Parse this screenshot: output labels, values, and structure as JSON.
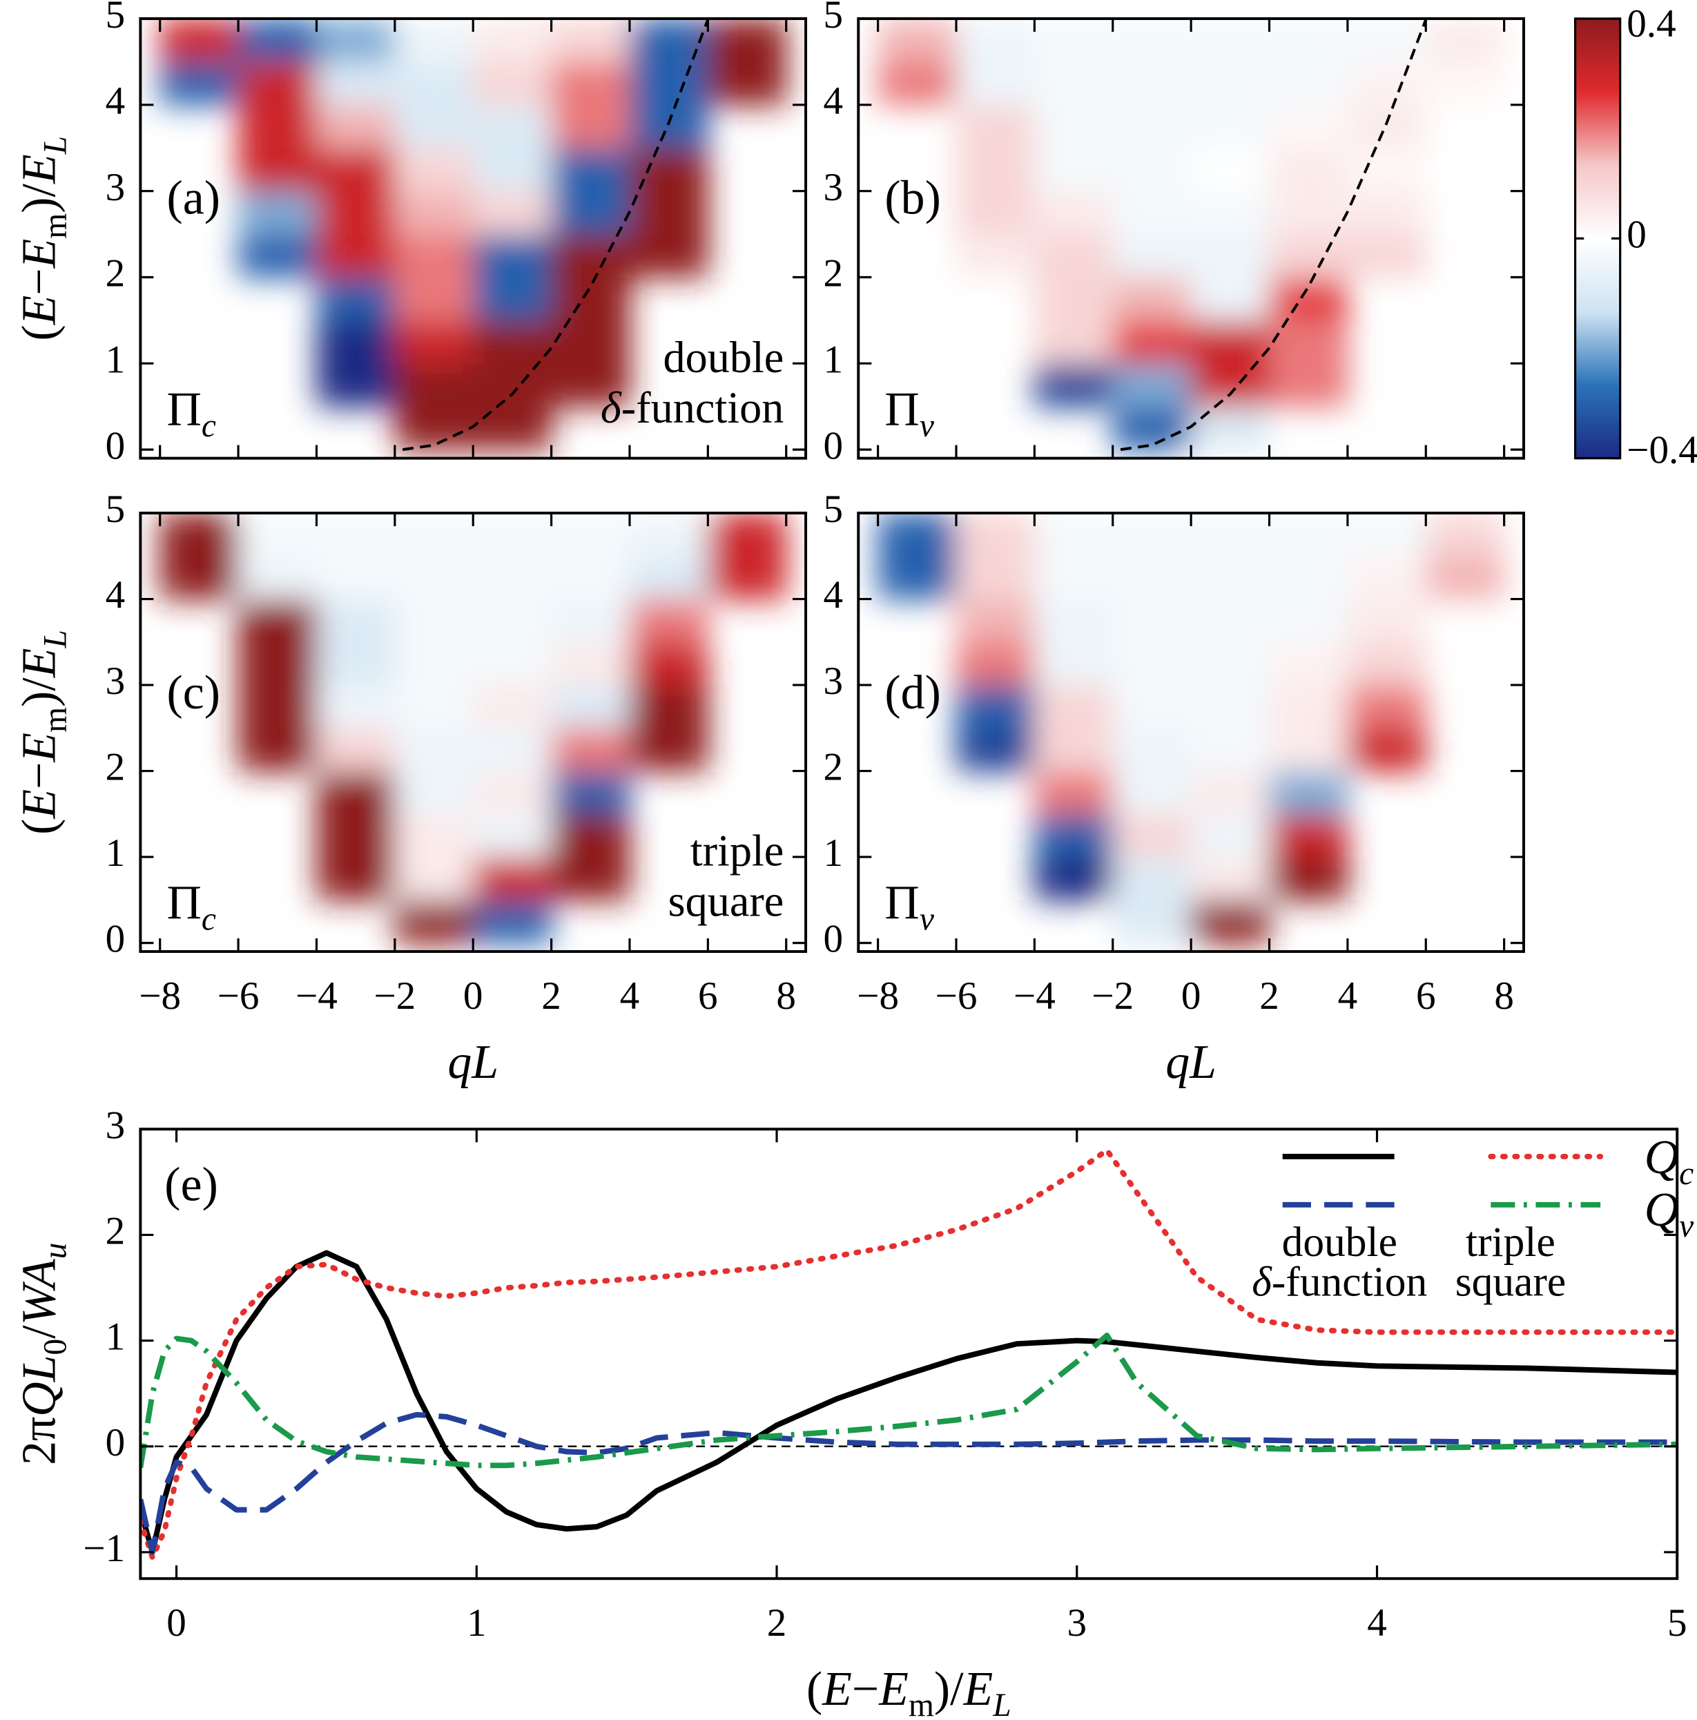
{
  "chart_data": [
    {
      "type": "heatmap",
      "panel_label": "(a)",
      "symbol": [
        [
          "Π",
          "n"
        ],
        [
          "c",
          "isub"
        ]
      ],
      "annotation": [
        [
          [
            "double",
            "n"
          ]
        ],
        [
          [
            "δ",
            "i"
          ],
          [
            "-function",
            "n"
          ]
        ]
      ],
      "ylabel": [
        [
          "(",
          "n"
        ],
        [
          "E",
          "i"
        ],
        [
          "−",
          "n"
        ],
        [
          "E",
          "i"
        ],
        [
          "m",
          "sub"
        ],
        [
          ")/",
          "n"
        ],
        [
          "E",
          "i"
        ],
        [
          "L",
          "isub"
        ]
      ],
      "x_edges": [
        -8,
        -6,
        -4,
        -2,
        0,
        2,
        4,
        6,
        8
      ],
      "y_edges": [
        0,
        0.5,
        1,
        1.5,
        2,
        2.5,
        3,
        3.5,
        4,
        4.5,
        5
      ],
      "z": [
        [
          null,
          null,
          null,
          0.4,
          0.4,
          null,
          null,
          null
        ],
        [
          null,
          null,
          -0.4,
          0.4,
          0.4,
          0.4,
          null,
          null
        ],
        [
          null,
          null,
          -0.4,
          0.3,
          0.4,
          0.4,
          null,
          null
        ],
        [
          null,
          null,
          -0.3,
          0.2,
          -0.3,
          0.4,
          null,
          null
        ],
        [
          null,
          -0.3,
          0.3,
          0.2,
          -0.3,
          0.4,
          0.4,
          null
        ],
        [
          null,
          -0.2,
          0.3,
          0.15,
          0.1,
          -0.3,
          0.4,
          null
        ],
        [
          null,
          0.3,
          0.3,
          0.1,
          -0.1,
          -0.3,
          0.4,
          null
        ],
        [
          null,
          0.3,
          0.15,
          -0.1,
          -0.1,
          0.2,
          -0.3,
          null
        ],
        [
          -0.3,
          0.3,
          -0.1,
          -0.1,
          0.1,
          0.2,
          -0.3,
          0.4
        ],
        [
          0.3,
          -0.3,
          -0.2,
          -0.05,
          0.05,
          0.1,
          -0.3,
          0.4
        ]
      ],
      "curve": {
        "x": [
          -1.8,
          -1,
          0,
          1,
          2,
          3,
          4,
          5,
          6
        ],
        "y": [
          0,
          0.052,
          0.266,
          0.643,
          1.18,
          1.89,
          2.76,
          3.79,
          4.99
        ]
      },
      "xlim": [
        -8.5,
        8.5
      ],
      "ylim": [
        -0.1,
        5
      ],
      "xticks": [
        -8,
        -6,
        -4,
        -2,
        0,
        2,
        4,
        6,
        8
      ],
      "show_xtick_labels": false,
      "yticks": [
        0,
        1,
        2,
        3,
        4,
        5
      ]
    },
    {
      "type": "heatmap",
      "panel_label": "(b)",
      "symbol": [
        [
          "Π",
          "n"
        ],
        [
          "v",
          "isub"
        ]
      ],
      "x_edges": [
        -8,
        -6,
        -4,
        -2,
        0,
        2,
        4,
        6,
        8
      ],
      "y_edges": [
        0,
        0.5,
        1,
        1.5,
        2,
        2.5,
        3,
        3.5,
        4,
        4.5,
        5
      ],
      "z": [
        [
          null,
          null,
          null,
          -0.3,
          -0.1,
          null,
          null,
          null
        ],
        [
          null,
          null,
          -0.35,
          -0.2,
          0.3,
          0.2,
          null,
          null
        ],
        [
          null,
          null,
          0.1,
          0.25,
          0.3,
          0.2,
          null,
          null
        ],
        [
          null,
          null,
          0.1,
          0.15,
          -0.05,
          0.25,
          null,
          null
        ],
        [
          null,
          0.05,
          0.1,
          -0.05,
          -0.05,
          0.1,
          0.1,
          null
        ],
        [
          null,
          0.1,
          0.05,
          -0.03,
          -0.03,
          0.05,
          0.05,
          null
        ],
        [
          null,
          0.1,
          -0.03,
          -0.03,
          0,
          0.05,
          0.02,
          null
        ],
        [
          null,
          0.1,
          -0.03,
          -0.03,
          -0.03,
          0.02,
          0.05,
          null
        ],
        [
          0.2,
          -0.05,
          -0.03,
          -0.03,
          -0.03,
          -0.03,
          0.03,
          0.02
        ],
        [
          0.15,
          -0.05,
          -0.03,
          -0.03,
          -0.03,
          -0.03,
          -0.03,
          0.05
        ]
      ],
      "curve": {
        "x": [
          -1.8,
          -1,
          0,
          1,
          2,
          3,
          4,
          5,
          6
        ],
        "y": [
          0,
          0.052,
          0.266,
          0.643,
          1.18,
          1.89,
          2.76,
          3.79,
          4.99
        ]
      },
      "xlim": [
        -8.5,
        8.5
      ],
      "ylim": [
        -0.1,
        5
      ],
      "xticks": [
        -8,
        -6,
        -4,
        -2,
        0,
        2,
        4,
        6,
        8
      ],
      "show_xtick_labels": false,
      "yticks": [
        0,
        1,
        2,
        3,
        4,
        5
      ]
    },
    {
      "type": "heatmap",
      "panel_label": "(c)",
      "symbol": [
        [
          "Π",
          "n"
        ],
        [
          "c",
          "isub"
        ]
      ],
      "annotation": [
        [
          [
            "triple",
            "n"
          ]
        ],
        [
          [
            "square",
            "n"
          ]
        ]
      ],
      "ylabel": [
        [
          "(",
          "n"
        ],
        [
          "E",
          "i"
        ],
        [
          "−",
          "n"
        ],
        [
          "E",
          "i"
        ],
        [
          "m",
          "sub"
        ],
        [
          ")/",
          "n"
        ],
        [
          "E",
          "i"
        ],
        [
          "L",
          "isub"
        ]
      ],
      "xlabel": [
        [
          "qL",
          "i"
        ]
      ],
      "x_edges": [
        -8,
        -6,
        -4,
        -2,
        0,
        2,
        4,
        6,
        8
      ],
      "y_edges": [
        0,
        0.5,
        1,
        1.5,
        2,
        2.5,
        3,
        3.5,
        4,
        4.5,
        5
      ],
      "z": [
        [
          null,
          null,
          null,
          0.4,
          -0.3,
          null,
          null,
          null
        ],
        [
          null,
          null,
          0.4,
          0.05,
          0.3,
          0.4,
          null,
          null
        ],
        [
          null,
          null,
          0.4,
          0.05,
          -0.05,
          0.4,
          null,
          null
        ],
        [
          null,
          null,
          0.4,
          -0.05,
          0.05,
          -0.3,
          null,
          null
        ],
        [
          null,
          0.4,
          0.1,
          -0.05,
          -0.05,
          0.2,
          0.4,
          null
        ],
        [
          null,
          0.4,
          -0.05,
          -0.03,
          0.05,
          -0.1,
          0.4,
          null
        ],
        [
          null,
          0.4,
          -0.1,
          -0.03,
          -0.03,
          0.05,
          0.3,
          null
        ],
        [
          null,
          0.4,
          -0.1,
          -0.03,
          -0.03,
          -0.05,
          0.2,
          null
        ],
        [
          0.4,
          -0.05,
          -0.03,
          -0.03,
          -0.03,
          -0.03,
          -0.1,
          0.3
        ],
        [
          0.4,
          -0.03,
          -0.03,
          -0.03,
          -0.03,
          -0.03,
          -0.05,
          0.3
        ]
      ],
      "xlim": [
        -8.5,
        8.5
      ],
      "ylim": [
        -0.1,
        5
      ],
      "xticks": [
        {
          "value": -8,
          "label": "−8"
        },
        {
          "value": -6,
          "label": "−6"
        },
        {
          "value": -4,
          "label": "−4"
        },
        {
          "value": -2,
          "label": "−2"
        },
        0,
        2,
        4,
        6,
        8
      ],
      "show_xtick_labels": true,
      "yticks": [
        0,
        1,
        2,
        3,
        4,
        5
      ]
    },
    {
      "type": "heatmap",
      "panel_label": "(d)",
      "symbol": [
        [
          "Π",
          "n"
        ],
        [
          "v",
          "isub"
        ]
      ],
      "xlabel": [
        [
          "qL",
          "i"
        ]
      ],
      "x_edges": [
        -8,
        -6,
        -4,
        -2,
        0,
        2,
        4,
        6,
        8
      ],
      "y_edges": [
        0,
        0.5,
        1,
        1.5,
        2,
        2.5,
        3,
        3.5,
        4,
        4.5,
        5
      ],
      "z": [
        [
          null,
          null,
          null,
          -0.1,
          0.4,
          null,
          null,
          null
        ],
        [
          null,
          null,
          -0.4,
          -0.1,
          0.05,
          0.4,
          null,
          null
        ],
        [
          null,
          null,
          -0.3,
          0.1,
          -0.05,
          0.3,
          null,
          null
        ],
        [
          null,
          null,
          0.2,
          -0.05,
          0.05,
          -0.2,
          null,
          null
        ],
        [
          null,
          -0.35,
          0.1,
          -0.05,
          -0.03,
          0.05,
          0.3,
          null
        ],
        [
          null,
          -0.3,
          0.1,
          -0.03,
          -0.03,
          0.05,
          0.2,
          null
        ],
        [
          null,
          0.2,
          -0.05,
          -0.03,
          -0.03,
          0.03,
          0.1,
          null
        ],
        [
          null,
          0.15,
          -0.05,
          -0.03,
          -0.03,
          -0.03,
          0.05,
          null
        ],
        [
          -0.3,
          0.1,
          -0.03,
          -0.03,
          -0.03,
          -0.03,
          0.03,
          0.15
        ],
        [
          -0.3,
          0.1,
          -0.03,
          -0.03,
          -0.03,
          -0.03,
          -0.03,
          0.1
        ]
      ],
      "xlim": [
        -8.5,
        8.5
      ],
      "ylim": [
        -0.1,
        5
      ],
      "xticks": [
        {
          "value": -8,
          "label": "−8"
        },
        {
          "value": -6,
          "label": "−6"
        },
        {
          "value": -4,
          "label": "−4"
        },
        {
          "value": -2,
          "label": "−2"
        },
        0,
        2,
        4,
        6,
        8
      ],
      "show_xtick_labels": true,
      "yticks": [
        0,
        1,
        2,
        3,
        4,
        5
      ]
    },
    {
      "type": "colorbar",
      "clim": [
        -0.4,
        0.4
      ],
      "colorscale": [
        "#1c2a84",
        "#2b73ba",
        "#cfe3f2",
        "#ffffff",
        "#f5c7c7",
        "#e02a2e",
        "#8e1b1e"
      ],
      "ticks": [
        0.4,
        0,
        {
          "value": -0.4,
          "label": "−0.4"
        }
      ]
    },
    {
      "type": "line",
      "panel_label": "(e)",
      "xlabel": [
        [
          "(",
          "n"
        ],
        [
          "E",
          "i"
        ],
        [
          "−",
          "n"
        ],
        [
          "E",
          "i"
        ],
        [
          "m",
          "sub"
        ],
        [
          ")/",
          "n"
        ],
        [
          "E",
          "i"
        ],
        [
          "L",
          "isub"
        ]
      ],
      "ylabel": [
        [
          "2π",
          "n"
        ],
        [
          "QL",
          "i"
        ],
        [
          "0",
          "sub"
        ],
        [
          "/",
          "n"
        ],
        [
          "WA",
          "i"
        ],
        [
          "u",
          "isub"
        ]
      ],
      "x": [
        -0.12,
        -0.08,
        -0.04,
        0,
        0.05,
        0.1,
        0.2,
        0.3,
        0.4,
        0.5,
        0.6,
        0.7,
        0.8,
        0.9,
        1,
        1.1,
        1.2,
        1.3,
        1.4,
        1.5,
        1.6,
        1.8,
        2,
        2.2,
        2.4,
        2.6,
        2.8,
        3,
        3.1,
        3.2,
        3.4,
        3.6,
        3.8,
        4,
        4.5,
        5
      ],
      "series": [
        {
          "color": "#000000",
          "dash": "solid",
          "values": [
            -0.6,
            -1.0,
            -0.5,
            -0.1,
            0.1,
            0.3,
            1.0,
            1.4,
            1.7,
            1.83,
            1.7,
            1.2,
            0.5,
            -0.05,
            -0.4,
            -0.62,
            -0.74,
            -0.78,
            -0.76,
            -0.65,
            -0.42,
            -0.15,
            0.2,
            0.45,
            0.65,
            0.83,
            0.97,
            1.0,
            0.99,
            0.96,
            0.9,
            0.84,
            0.79,
            0.76,
            0.74,
            0.7
          ]
        },
        {
          "color": "#e5302f",
          "dash": "dotted",
          "values": [
            -0.7,
            -1.05,
            -0.8,
            -0.3,
            0.1,
            0.6,
            1.2,
            1.5,
            1.7,
            1.72,
            1.58,
            1.5,
            1.45,
            1.42,
            1.45,
            1.5,
            1.52,
            1.55,
            1.56,
            1.58,
            1.6,
            1.65,
            1.7,
            1.8,
            1.9,
            2.05,
            2.25,
            2.6,
            2.8,
            2.4,
            1.6,
            1.2,
            1.1,
            1.08,
            1.08,
            1.08
          ]
        },
        {
          "color": "#23409a",
          "dash": "dashed",
          "values": [
            -0.5,
            -1.0,
            -0.4,
            -0.15,
            -0.2,
            -0.4,
            -0.6,
            -0.6,
            -0.4,
            -0.15,
            0.05,
            0.22,
            0.3,
            0.28,
            0.2,
            0.1,
            0.0,
            -0.05,
            -0.06,
            -0.02,
            0.08,
            0.13,
            0.08,
            0.04,
            0.02,
            0.02,
            0.02,
            0.03,
            0.04,
            0.05,
            0.06,
            0.06,
            0.05,
            0.05,
            0.04,
            0.04
          ]
        },
        {
          "color": "#1a9a4a",
          "dash": "dashdot",
          "values": [
            -0.2,
            0.5,
            0.9,
            1.02,
            1.0,
            0.9,
            0.6,
            0.25,
            0.05,
            -0.05,
            -0.1,
            -0.12,
            -0.14,
            -0.16,
            -0.18,
            -0.18,
            -0.16,
            -0.13,
            -0.1,
            -0.06,
            -0.02,
            0.06,
            0.1,
            0.14,
            0.19,
            0.25,
            0.35,
            0.8,
            1.05,
            0.6,
            0.1,
            -0.02,
            -0.03,
            -0.02,
            0.0,
            0.02
          ]
        }
      ],
      "legend": {
        "rows": [
          [
            [
              "Q",
              "i"
            ],
            [
              "c",
              "isub"
            ]
          ],
          [
            [
              "Q",
              "i"
            ],
            [
              "v",
              "isub"
            ]
          ]
        ],
        "columns": [
          [
            [
              [
                "double",
                "n"
              ]
            ],
            [
              [
                "δ",
                "i"
              ],
              [
                "-function",
                "n"
              ]
            ]
          ],
          [
            [
              [
                "triple",
                "n"
              ]
            ],
            [
              [
                "square",
                "n"
              ]
            ]
          ]
        ]
      },
      "zero_line": true,
      "xlim": [
        -0.12,
        5
      ],
      "ylim": [
        -1.25,
        3
      ],
      "xticks": [
        0,
        1,
        2,
        3,
        4,
        5
      ],
      "yticks": [
        {
          "value": -1,
          "label": "−1"
        },
        0,
        1,
        2,
        3
      ]
    }
  ]
}
